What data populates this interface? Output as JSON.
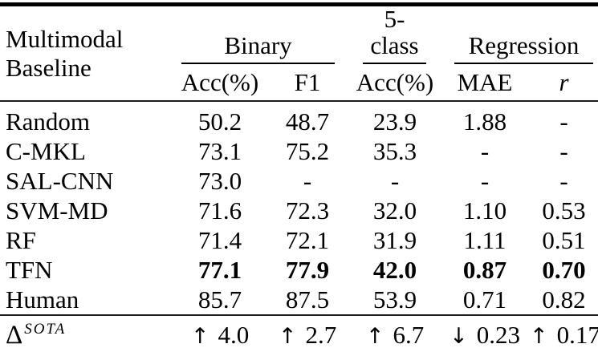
{
  "table": {
    "row_header": {
      "line1": "Multimodal",
      "line2": "Baseline"
    },
    "groups": [
      {
        "label": "Binary",
        "subcols": [
          "Acc(%)",
          "F1"
        ]
      },
      {
        "label": "5-class",
        "subcols": [
          "Acc(%)"
        ]
      },
      {
        "label": "Regression",
        "subcols": [
          "MAE",
          "r"
        ]
      }
    ],
    "rows": [
      {
        "name": "Random",
        "values": [
          "50.2",
          "48.7",
          "23.9",
          "1.88",
          "-"
        ]
      },
      {
        "name": "C-MKL",
        "values": [
          "73.1",
          "75.2",
          "35.3",
          "-",
          "-"
        ]
      },
      {
        "name": "SAL-CNN",
        "values": [
          "73.0",
          "-",
          "-",
          "-",
          "-"
        ]
      },
      {
        "name": "SVM-MD",
        "values": [
          "71.6",
          "72.3",
          "32.0",
          "1.10",
          "0.53"
        ]
      },
      {
        "name": "RF",
        "values": [
          "71.4",
          "72.1",
          "31.9",
          "1.11",
          "0.51"
        ]
      },
      {
        "name": "TFN",
        "values": [
          "77.1",
          "77.9",
          "42.0",
          "0.87",
          "0.70"
        ],
        "highlight": true
      },
      {
        "name": "Human",
        "values": [
          "85.7",
          "87.5",
          "53.9",
          "0.71",
          "0.82"
        ]
      }
    ],
    "delta_row": {
      "symbol": "Δ",
      "superscript": "SOTA",
      "values": [
        {
          "arrow": "↑",
          "value": "4.0"
        },
        {
          "arrow": "↑",
          "value": "2.7"
        },
        {
          "arrow": "↑",
          "value": "6.7"
        },
        {
          "arrow": "↓",
          "value": "0.23"
        },
        {
          "arrow": "↑",
          "value": "0.17"
        }
      ]
    }
  },
  "colors": {
    "text": "#000000",
    "thick_rule": "#000000",
    "thin_rule": "#1c1c1c",
    "background": "#ffffff"
  }
}
